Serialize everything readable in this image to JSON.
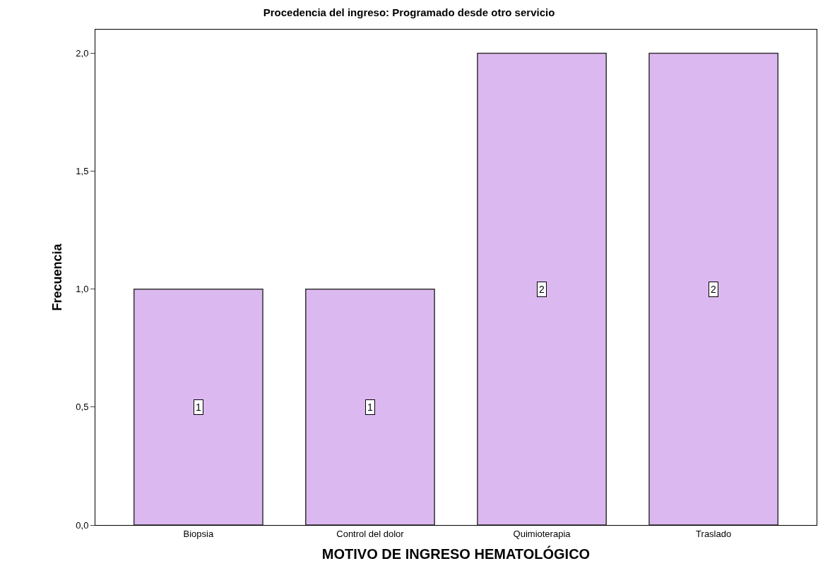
{
  "chart_data": {
    "type": "bar",
    "title": "Procedencia del ingreso: Programado desde otro servicio",
    "xlabel": "MOTIVO DE INGRESO HEMATOLÓGICO",
    "ylabel": "Frecuencia",
    "categories": [
      "Biopsia",
      "Control del dolor",
      "Quimioterapia",
      "Traslado"
    ],
    "values": [
      1,
      1,
      2,
      2
    ],
    "color": "#dcb8f0",
    "data_labels": true,
    "ylim": [
      0,
      2.1
    ],
    "yticks": [
      {
        "value": 0,
        "label": "0,0"
      },
      {
        "value": 0.5,
        "label": "0,5"
      },
      {
        "value": 1,
        "label": "1,0"
      },
      {
        "value": 1.5,
        "label": "1,5"
      },
      {
        "value": 2,
        "label": "2,0"
      }
    ]
  }
}
